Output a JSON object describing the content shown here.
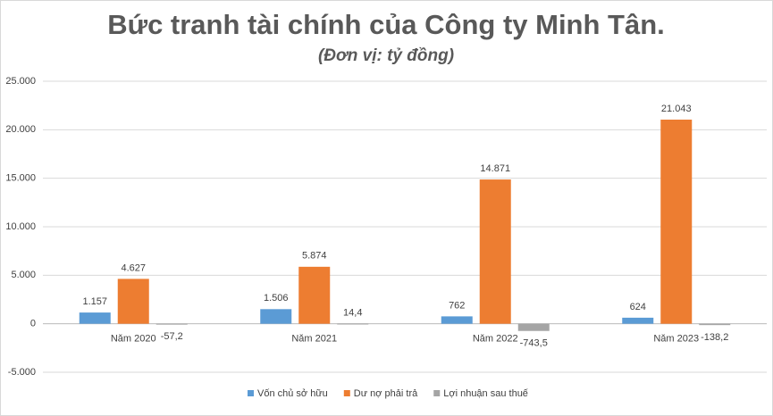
{
  "chart_data": {
    "type": "bar",
    "title": "Bức tranh tài chính của Công ty Minh Tân.",
    "subtitle": "(Đơn vị: tỷ đồng)",
    "categories": [
      "Năm 2020",
      "Năm 2021",
      "Năm 2022",
      "Năm 2023"
    ],
    "series": [
      {
        "name": "Vốn chủ sở hữu",
        "color": "#5b9bd5",
        "values": [
          1157,
          1506,
          762,
          624
        ],
        "value_labels": [
          "1.157",
          "1.506",
          "762",
          "624"
        ]
      },
      {
        "name": "Dư nợ phải trả",
        "color": "#ed7d31",
        "values": [
          4627,
          5874,
          14871,
          21043
        ],
        "value_labels": [
          "4.627",
          "5.874",
          "14.871",
          "21.043"
        ]
      },
      {
        "name": "Lợi nhuận sau thuế",
        "color": "#a5a5a5",
        "values": [
          -57.2,
          14.4,
          -743.5,
          -138.2
        ],
        "value_labels": [
          "-57,2",
          "14,4",
          "-743,5",
          "-138,2"
        ]
      }
    ],
    "ylim": [
      -5000,
      25000
    ],
    "yticks": [
      {
        "value": -5000,
        "label": "-5.000"
      },
      0,
      {
        "value": 5000,
        "label": "5.000"
      },
      {
        "value": 10000,
        "label": "10.000"
      },
      {
        "value": 15000,
        "label": "15.000"
      },
      {
        "value": 20000,
        "label": "20.000"
      },
      {
        "value": 25000,
        "label": "25.000"
      }
    ],
    "grid": true,
    "legend": "bottom"
  }
}
